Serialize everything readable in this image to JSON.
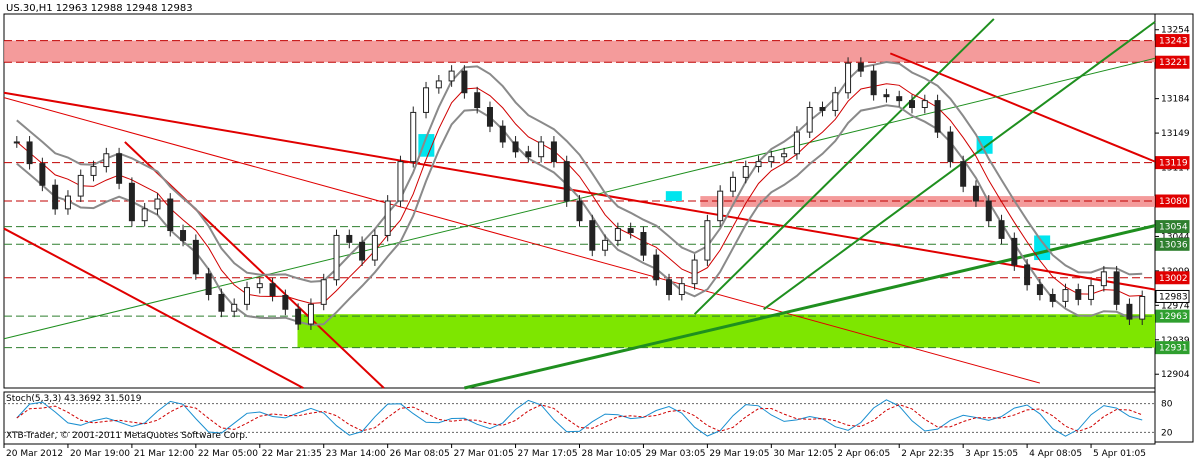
{
  "header": {
    "symbol_info": "US.30,H1  12963 12988 12948 12983"
  },
  "indicator": {
    "label": "Stoch(5,3,3) 43.3692 31.5019",
    "levels": [
      "80",
      "20"
    ]
  },
  "copyright": "XTB-Trader, © 2001-2011 MetaQuotes Software Corp.",
  "colors": {
    "background": "#ffffff",
    "candle": "#222222",
    "bollinger": "#8a8a8a",
    "ma": "#d00000",
    "trend_red": "#e00000",
    "trend_green": "#1f8f1f",
    "zone_red": "#f28a8a",
    "zone_green": "#7ee600",
    "highlight": "#00e5ee",
    "stoch_main": "#1a8fd0",
    "stoch_signal": "#d00000"
  },
  "chart_data": {
    "type": "candlestick",
    "instrument": "US.30",
    "timeframe": "H1",
    "current_ohlc": {
      "open": 12963,
      "high": 12988,
      "low": 12948,
      "close": 12983
    },
    "ylim": [
      12890,
      13270
    ],
    "y_ticks": [
      "13254",
      "13219",
      "13184",
      "13149",
      "13114",
      "13079",
      "13044",
      "13009",
      "12974",
      "12939",
      "12904"
    ],
    "x_ticks": [
      "20 Mar 2012",
      "20 Mar 19:00",
      "21 Mar 12:00",
      "22 Mar 05:00",
      "22 Mar 21:35",
      "23 Mar 14:00",
      "26 Mar 08:05",
      "27 Mar 01:05",
      "27 Mar 17:05",
      "28 Mar 10:05",
      "29 Mar 03:05",
      "29 Mar 19:05",
      "30 Mar 12:05",
      "2 Apr 06:05",
      "2 Apr 22:35",
      "3 Apr 15:05",
      "4 Apr 08:05",
      "5 Apr 01:05"
    ],
    "price_labels": [
      {
        "value": 13243,
        "text": "13243",
        "kind": "zone"
      },
      {
        "value": 13221,
        "text": "13221",
        "kind": "zone"
      },
      {
        "value": 13119,
        "text": "13119",
        "kind": "zone"
      },
      {
        "value": 13080,
        "text": "13080",
        "kind": "zone"
      },
      {
        "value": 13054,
        "text": "13054",
        "kind": "level"
      },
      {
        "value": 13036,
        "text": "13036",
        "kind": "level"
      },
      {
        "value": 13002,
        "text": "13002",
        "kind": "zone"
      },
      {
        "value": 12983,
        "text": "12983",
        "kind": "price"
      },
      {
        "value": 12963,
        "text": "12963",
        "kind": "green"
      },
      {
        "value": 12931,
        "text": "12931",
        "kind": "green"
      }
    ],
    "zones": [
      {
        "from": 13221,
        "to": 13243,
        "color": "red"
      },
      {
        "from": 13074,
        "to": 13085,
        "color": "red",
        "x_from": 0.605
      },
      {
        "from": 12931,
        "to": 12965,
        "color": "green",
        "x_from": 0.255
      }
    ],
    "close_path": [
      13140,
      13118,
      13096,
      13072,
      13085,
      13106,
      13115,
      13128,
      13098,
      13060,
      13072,
      13082,
      13050,
      13040,
      13006,
      12985,
      12968,
      12975,
      12992,
      12996,
      12984,
      12970,
      12955,
      12975,
      13000,
      13045,
      13038,
      13020,
      13045,
      13080,
      13120,
      13170,
      13195,
      13202,
      13212,
      13190,
      13175,
      13156,
      13140,
      13130,
      13125,
      13140,
      13120,
      13080,
      13060,
      13030,
      13040,
      13052,
      13048,
      13025,
      13000,
      12985,
      12996,
      13020,
      13060,
      13090,
      13104,
      13115,
      13120,
      13125,
      13128,
      13150,
      13175,
      13172,
      13190,
      13220,
      13212,
      13188,
      13186,
      13182,
      13175,
      13182,
      13150,
      13120,
      13095,
      13080,
      13060,
      13042,
      13015,
      12995,
      12985,
      12978,
      12990,
      12980,
      12994,
      13008,
      12975,
      12960,
      12983
    ]
  }
}
